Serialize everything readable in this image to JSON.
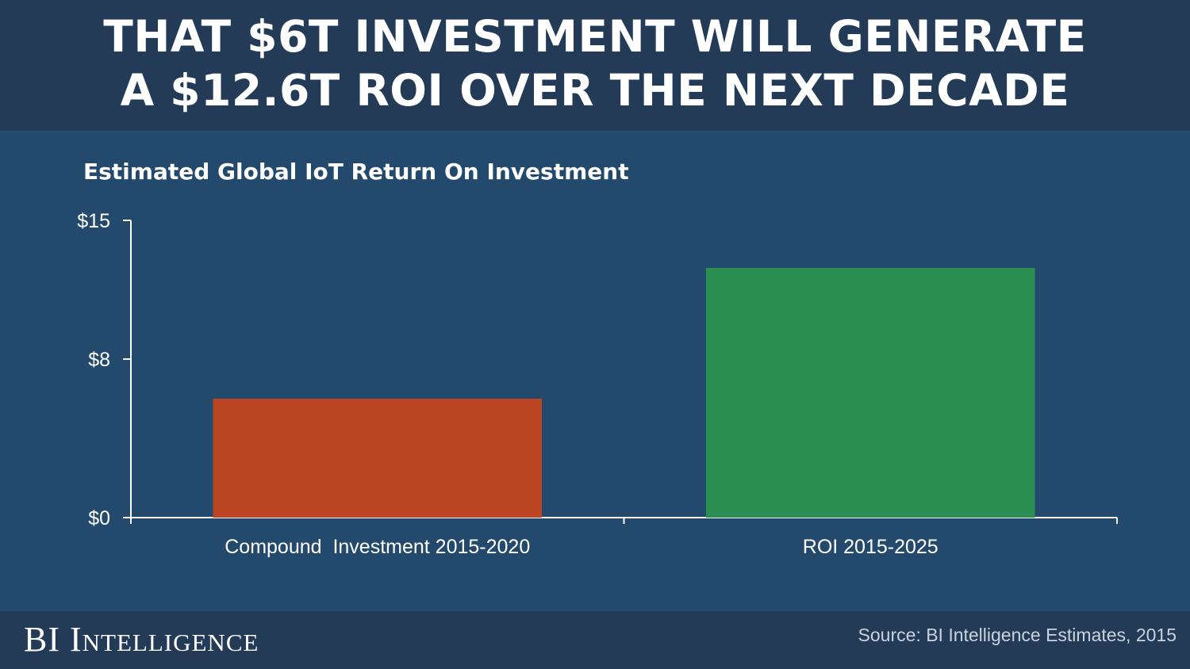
{
  "header": {
    "line1": "THAT $6T INVESTMENT WILL GENERATE",
    "line2": "A $12.6T ROI OVER THE NEXT DECADE"
  },
  "footer": {
    "brand_bi": "BI",
    "brand_intelligence": "Intelligence",
    "source": "Source: BI Intelligence Estimates, 2015"
  },
  "chart_data": {
    "type": "bar",
    "title": "Estimated Global IoT Return On Investment",
    "categories": [
      "Compound  Investment 2015-2020",
      "ROI 2015-2025"
    ],
    "values": [
      6,
      12.6
    ],
    "colors": [
      "#bc4523",
      "#2b8f52"
    ],
    "unit": "trillion USD",
    "ylim": [
      0,
      15
    ],
    "yticks": [
      0,
      8,
      15
    ],
    "ytick_labels": [
      "$0",
      "$8",
      "$15"
    ],
    "xlabel": "",
    "ylabel": "",
    "grid": false,
    "legend": "none"
  }
}
